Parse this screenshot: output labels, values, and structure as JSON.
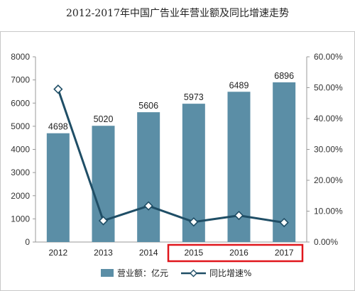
{
  "chart_data": {
    "type": "bar",
    "title": "2012-2017年中国广告业年营业额及同比增速走势",
    "categories": [
      "2012",
      "2013",
      "2014",
      "2015",
      "2016",
      "2017"
    ],
    "series": [
      {
        "name": "营业额：亿元",
        "type": "bar",
        "axis": "left",
        "values": [
          4698,
          5020,
          5606,
          5973,
          6489,
          6896
        ],
        "color": "#5b8ea6"
      },
      {
        "name": "同比增速%",
        "type": "line",
        "axis": "right",
        "values": [
          49.5,
          6.9,
          11.7,
          6.5,
          8.6,
          6.3
        ],
        "color": "#1f4e66"
      }
    ],
    "left_axis": {
      "min": 0,
      "max": 8000,
      "step": 1000,
      "tick_labels": [
        "0",
        "1000",
        "2000",
        "3000",
        "4000",
        "5000",
        "6000",
        "7000",
        "8000"
      ]
    },
    "right_axis": {
      "min": 0,
      "max": 60,
      "step": 10,
      "tick_labels": [
        "0.00%",
        "10.00%",
        "20.00%",
        "30.00%",
        "40.00%",
        "50.00%",
        "60.00%"
      ]
    },
    "grid": false,
    "legend": "bottom",
    "highlight": {
      "categories": [
        "2015",
        "2016",
        "2017"
      ],
      "color": "#e0161c"
    }
  }
}
